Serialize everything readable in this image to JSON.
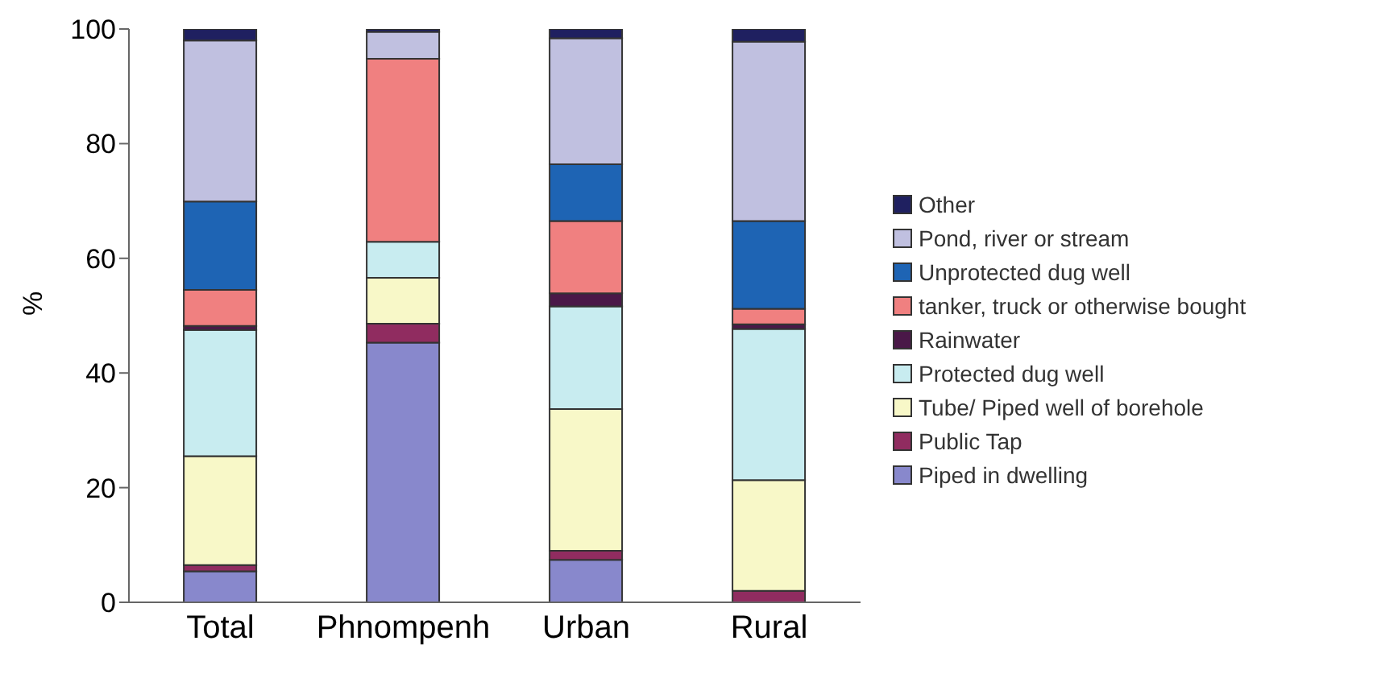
{
  "chart_data": {
    "type": "bar",
    "stacked": true,
    "ylabel": "%",
    "categories": [
      "Total",
      "Phnompenh",
      "Urban",
      "Rural"
    ],
    "ylim": [
      0,
      100
    ],
    "yticks": [
      0,
      20,
      40,
      60,
      80,
      100
    ],
    "grid": false,
    "legend": "right",
    "series": [
      {
        "name": "Piped in dwelling",
        "color": "#8888cc",
        "values": [
          5.4,
          45.3,
          7.4,
          null
        ]
      },
      {
        "name": "Public Tap",
        "color": "#902c60",
        "values": [
          1.1,
          3.3,
          1.6,
          2.0
        ]
      },
      {
        "name": "Tube/ Piped well of borehole",
        "color": "#f8f8c8",
        "values": [
          19.0,
          8.0,
          24.7,
          19.3
        ]
      },
      {
        "name": "Protected dug well",
        "color": "#c8ecf0",
        "values": [
          22.0,
          6.3,
          17.9,
          26.4
        ]
      },
      {
        "name": "Rainwater",
        "color": "#4a1848",
        "values": [
          0.7,
          0,
          2.3,
          0.8
        ]
      },
      {
        "name": "tanker, truck or otherwise bought",
        "color": "#f08080",
        "values": [
          6.3,
          31.9,
          12.6,
          2.7
        ]
      },
      {
        "name": "Unprotected dug well",
        "color": "#1e64b4",
        "values": [
          15.4,
          0,
          9.9,
          15.3
        ]
      },
      {
        "name": "Pond, river or stream",
        "color": "#c0c0e0",
        "values": [
          28.1,
          4.7,
          22.0,
          31.3
        ]
      },
      {
        "name": "Other",
        "color": "#1f2060",
        "values": [
          2.0,
          0.5,
          1.6,
          2.2
        ]
      }
    ]
  }
}
